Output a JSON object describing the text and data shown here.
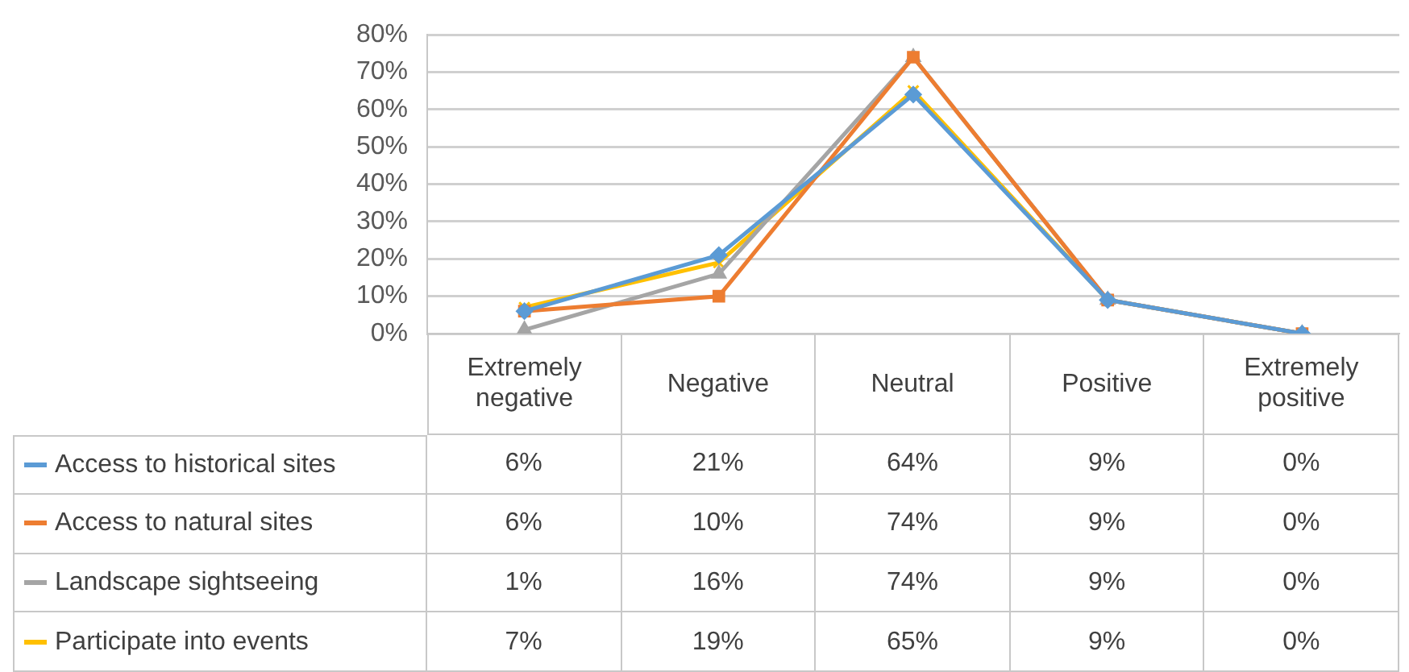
{
  "chart_data": {
    "type": "line",
    "categories": [
      "Extremely negative",
      "Negative",
      "Neutral",
      "Positive",
      "Extremely positive"
    ],
    "ylim": [
      0,
      80
    ],
    "yticks": [
      {
        "value": 0,
        "label": "0%"
      },
      {
        "value": 10,
        "label": "10%"
      },
      {
        "value": 20,
        "label": "20%"
      },
      {
        "value": 30,
        "label": "30%"
      },
      {
        "value": 40,
        "label": "40%"
      },
      {
        "value": 50,
        "label": "50%"
      },
      {
        "value": 60,
        "label": "60%"
      },
      {
        "value": 70,
        "label": "70%"
      },
      {
        "value": 80,
        "label": "80%"
      }
    ],
    "grid": "y",
    "legend": "bottom left",
    "series": [
      {
        "name": "Access to historical sites",
        "color": "#5b9bd5",
        "marker": "diamond",
        "values": [
          6,
          21,
          64,
          9,
          0
        ],
        "value_labels": [
          "6%",
          "21%",
          "64%",
          "9%",
          "0%"
        ]
      },
      {
        "name": "Access to natural sites",
        "color": "#ed7d31",
        "marker": "square",
        "values": [
          6,
          10,
          74,
          9,
          0
        ],
        "value_labels": [
          "6%",
          "10%",
          "74%",
          "9%",
          "0%"
        ]
      },
      {
        "name": "Landscape sightseeing",
        "color": "#a5a5a5",
        "marker": "triangle",
        "values": [
          1,
          16,
          74,
          9,
          0
        ],
        "value_labels": [
          "1%",
          "16%",
          "74%",
          "9%",
          "0%"
        ]
      },
      {
        "name": "Participate into events",
        "color": "#ffc000",
        "marker": "cross",
        "values": [
          7,
          19,
          65,
          9,
          0
        ],
        "value_labels": [
          "7%",
          "19%",
          "65%",
          "9%",
          "0%"
        ]
      }
    ]
  }
}
